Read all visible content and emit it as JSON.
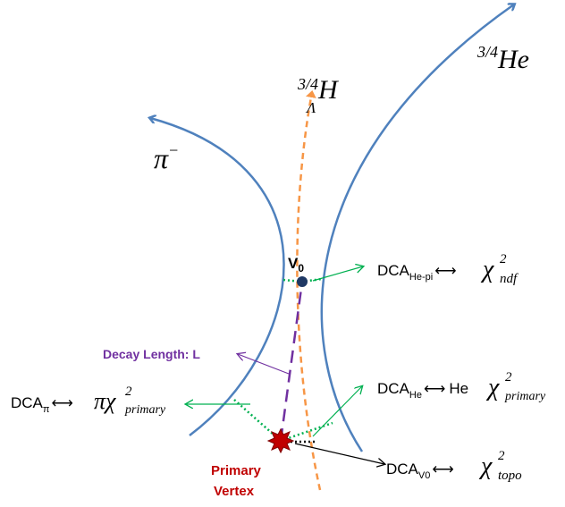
{
  "colors": {
    "track_blue": "#4f81bd",
    "hypertriton_orange": "#f79646",
    "decay_purple": "#7030a0",
    "dca_green": "#00b050",
    "vertex_red": "#c00000",
    "v0_dot": "#1f3864",
    "text_black": "#000000"
  },
  "labels": {
    "he_track": "He",
    "he_track_sup": "3/4",
    "hypertriton": "H",
    "hypertriton_sup": "3/4",
    "hypertriton_sub": "Λ",
    "pion": "π",
    "pion_sup": "−",
    "v0": "V",
    "v0_sub": "0",
    "decay_length": "Decay Length: L",
    "primary_vertex_line1": "Primary",
    "primary_vertex_line2": "Vertex"
  },
  "formulas": {
    "dca_he_pi": {
      "dca": "DCA",
      "sub": "He-pi",
      "arrow": "⟷",
      "species": "",
      "chi": "χ",
      "chi_sup": "2",
      "chi_sub": "ndf"
    },
    "dca_he": {
      "dca": "DCA",
      "sub": "He",
      "arrow": "⟷",
      "species": "He",
      "chi": "χ",
      "chi_sup": "2",
      "chi_sub": "primary"
    },
    "dca_pi": {
      "dca": "DCA",
      "sub": "π",
      "arrow": "⟷",
      "species": "π",
      "chi": "χ",
      "chi_sup": "2",
      "chi_sub": "primary"
    },
    "dca_v0": {
      "dca": "DCA",
      "sub": "V0",
      "arrow": "⟷",
      "species": "",
      "chi": "χ",
      "chi_sup": "2",
      "chi_sub": "topo"
    }
  }
}
